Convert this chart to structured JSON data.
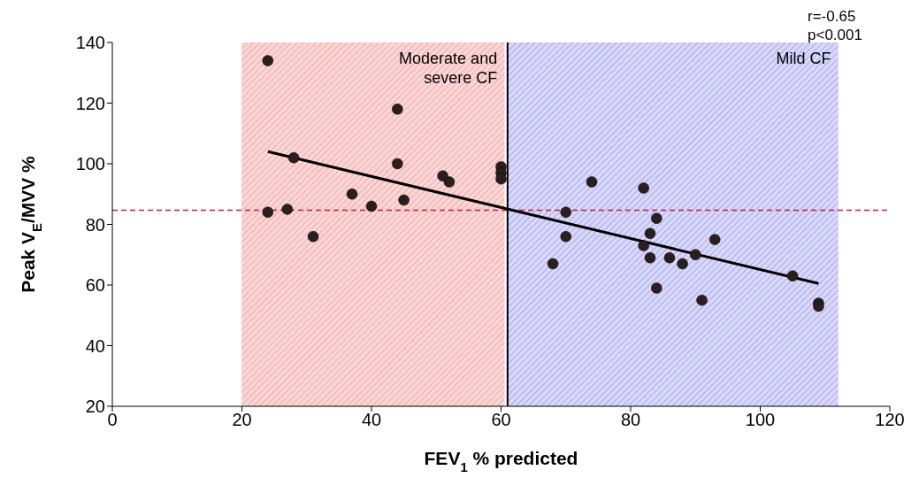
{
  "chart_data": {
    "type": "scatter",
    "xlabel": "FEV$_{1}$ % predicted",
    "ylabel": "Peak V$_{E}$/MVV %",
    "xlim": [
      0,
      120
    ],
    "xticks": [
      0,
      20,
      40,
      60,
      80,
      100,
      120
    ],
    "ylim": [
      20,
      140
    ],
    "yticks": [
      20,
      40,
      60,
      80,
      100,
      120,
      140
    ],
    "marker": "circle",
    "series": [
      {
        "type": "scatter",
        "color": "#2b1e1e",
        "x": [
          24,
          24,
          27,
          28,
          31,
          37,
          40,
          44,
          44,
          45,
          51,
          52,
          60,
          60,
          60,
          68,
          70,
          70,
          74,
          82,
          82,
          83,
          83,
          84,
          84,
          86,
          88,
          90,
          91,
          93,
          105,
          109,
          109
        ],
        "values": [
          134,
          84,
          85,
          102,
          76,
          90,
          86,
          118,
          100,
          88,
          96,
          94,
          99,
          97,
          95,
          67,
          84,
          76,
          94,
          92,
          73,
          77,
          69,
          82,
          59,
          69,
          67,
          70,
          55,
          75,
          63,
          54,
          53
        ]
      },
      {
        "type": "line",
        "color": "#000000",
        "marker": "none",
        "line_style": "solid",
        "x": [
          24,
          109
        ],
        "values": [
          104,
          60.5
        ]
      }
    ],
    "ref_lines": [
      {
        "axis": "y",
        "value": 84.7,
        "color": "#c0203a",
        "line_style": "dashed"
      },
      {
        "axis": "x",
        "value": 61,
        "color": "#000000",
        "line_style": "solid"
      }
    ],
    "bands": [
      {
        "axis": "x",
        "from": 20,
        "to": 60.5,
        "label": "Moderate and severe CF",
        "color": "#f4a6a6"
      },
      {
        "axis": "x",
        "from": 61,
        "to": 112,
        "label": "Mild CF",
        "color": "#a8a8f0"
      }
    ],
    "annotations": [
      "r=-0.65",
      "p<0.001"
    ]
  }
}
